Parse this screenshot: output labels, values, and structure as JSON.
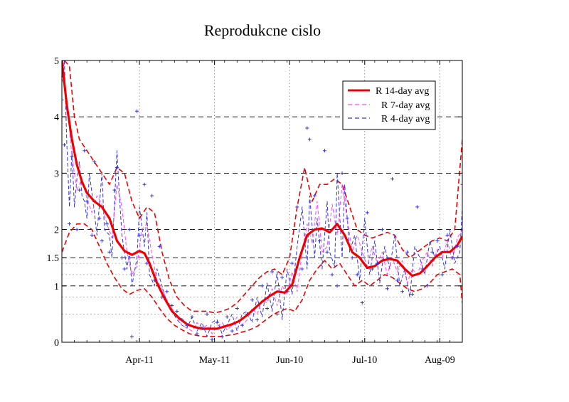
{
  "chart_data": {
    "type": "line",
    "title": "Reprodukcne cislo",
    "xlabel": "",
    "ylabel": "",
    "x_range": [
      "2020-03-11",
      "2020-08-18"
    ],
    "ylim": [
      0,
      5
    ],
    "y_ticks": [
      0,
      1,
      1.5,
      2,
      3,
      4,
      5
    ],
    "y_tick_labels": [
      "0",
      "1",
      "1.5",
      "2",
      "3",
      "4",
      "5"
    ],
    "y_gridlines": [
      0.5,
      0.8,
      1,
      1.2,
      1.4,
      1.5,
      2,
      3,
      4
    ],
    "x_ticks": [
      {
        "date": "2020-04-11",
        "label": "Apr-11"
      },
      {
        "date": "2020-05-11",
        "label": "May-11"
      },
      {
        "date": "2020-06-10",
        "label": "Jun-10"
      },
      {
        "date": "2020-07-10",
        "label": "Jul-10"
      },
      {
        "date": "2020-08-09",
        "label": "Aug-09"
      }
    ],
    "legend": {
      "position": "top-right",
      "entries": [
        {
          "label": "R 14-day avg",
          "color": "#ee0000",
          "style": "solid"
        },
        {
          "label": "R 7-day avg",
          "color": "#ff44ff",
          "style": "dashed"
        },
        {
          "label": "R 4-day avg",
          "color": "#3333ee",
          "style": "dashed"
        }
      ]
    },
    "series": [
      {
        "key": "r14",
        "color": "#ee0000",
        "x": [
          "2020-03-11",
          "2020-03-13",
          "2020-03-15",
          "2020-03-17",
          "2020-03-19",
          "2020-03-21",
          "2020-03-24",
          "2020-03-27",
          "2020-03-30",
          "2020-04-02",
          "2020-04-05",
          "2020-04-08",
          "2020-04-11",
          "2020-04-13",
          "2020-04-15",
          "2020-04-18",
          "2020-04-21",
          "2020-04-24",
          "2020-04-27",
          "2020-04-30",
          "2020-05-03",
          "2020-05-06",
          "2020-05-09",
          "2020-05-12",
          "2020-05-15",
          "2020-05-18",
          "2020-05-21",
          "2020-05-24",
          "2020-05-27",
          "2020-05-30",
          "2020-06-02",
          "2020-06-05",
          "2020-06-08",
          "2020-06-11",
          "2020-06-14",
          "2020-06-17",
          "2020-06-20",
          "2020-06-23",
          "2020-06-26",
          "2020-06-29",
          "2020-07-02",
          "2020-07-05",
          "2020-07-08",
          "2020-07-11",
          "2020-07-14",
          "2020-07-17",
          "2020-07-20",
          "2020-07-23",
          "2020-07-26",
          "2020-07-29",
          "2020-08-01",
          "2020-08-04",
          "2020-08-07",
          "2020-08-10",
          "2020-08-13",
          "2020-08-16",
          "2020-08-18"
        ],
        "y": [
          5.0,
          4.2,
          3.6,
          3.15,
          2.85,
          2.65,
          2.5,
          2.4,
          2.2,
          1.8,
          1.62,
          1.55,
          1.62,
          1.58,
          1.4,
          1.05,
          0.78,
          0.55,
          0.42,
          0.32,
          0.27,
          0.24,
          0.24,
          0.24,
          0.28,
          0.32,
          0.38,
          0.48,
          0.6,
          0.72,
          0.82,
          0.9,
          0.88,
          1.02,
          1.5,
          1.9,
          2.0,
          2.02,
          1.95,
          2.1,
          1.9,
          1.6,
          1.5,
          1.32,
          1.35,
          1.45,
          1.48,
          1.45,
          1.3,
          1.18,
          1.22,
          1.35,
          1.5,
          1.6,
          1.6,
          1.72,
          1.88
        ]
      },
      {
        "key": "r14_upper",
        "color": "#ee0000",
        "x": [
          "2020-03-12",
          "2020-03-14",
          "2020-03-16",
          "2020-03-18",
          "2020-03-21",
          "2020-03-24",
          "2020-03-27",
          "2020-03-30",
          "2020-04-02",
          "2020-04-05",
          "2020-04-08",
          "2020-04-11",
          "2020-04-14",
          "2020-04-17",
          "2020-04-20",
          "2020-04-23",
          "2020-04-26",
          "2020-04-29",
          "2020-05-02",
          "2020-05-05",
          "2020-05-08",
          "2020-05-11",
          "2020-05-14",
          "2020-05-17",
          "2020-05-20",
          "2020-05-23",
          "2020-05-26",
          "2020-05-29",
          "2020-06-01",
          "2020-06-04",
          "2020-06-07",
          "2020-06-10",
          "2020-06-13",
          "2020-06-16",
          "2020-06-19",
          "2020-06-22",
          "2020-06-25",
          "2020-06-28",
          "2020-07-01",
          "2020-07-04",
          "2020-07-07",
          "2020-07-10",
          "2020-07-13",
          "2020-07-16",
          "2020-07-19",
          "2020-07-22",
          "2020-07-25",
          "2020-07-28",
          "2020-07-31",
          "2020-08-03",
          "2020-08-06",
          "2020-08-09",
          "2020-08-12",
          "2020-08-15",
          "2020-08-18"
        ],
        "y": [
          5.0,
          4.9,
          4.0,
          3.6,
          3.4,
          3.2,
          3.0,
          2.8,
          3.1,
          3.0,
          2.5,
          2.2,
          2.4,
          2.3,
          1.6,
          1.1,
          0.8,
          0.65,
          0.55,
          0.55,
          0.55,
          0.52,
          0.55,
          0.6,
          0.7,
          0.85,
          1.0,
          1.15,
          1.25,
          1.3,
          1.2,
          1.5,
          2.4,
          3.1,
          2.5,
          2.8,
          2.8,
          2.9,
          2.8,
          2.4,
          2.0,
          1.9,
          1.85,
          1.9,
          1.95,
          1.9,
          1.65,
          1.5,
          1.6,
          1.7,
          1.8,
          1.85,
          1.8,
          2.0,
          3.6
        ]
      },
      {
        "key": "r14_lower",
        "color": "#ee0000",
        "x": [
          "2020-03-11",
          "2020-03-14",
          "2020-03-17",
          "2020-03-20",
          "2020-03-23",
          "2020-03-26",
          "2020-03-29",
          "2020-04-01",
          "2020-04-04",
          "2020-04-07",
          "2020-04-10",
          "2020-04-13",
          "2020-04-16",
          "2020-04-19",
          "2020-04-22",
          "2020-04-25",
          "2020-04-28",
          "2020-05-01",
          "2020-05-04",
          "2020-05-07",
          "2020-05-10",
          "2020-05-13",
          "2020-05-16",
          "2020-05-19",
          "2020-05-22",
          "2020-05-25",
          "2020-05-28",
          "2020-05-31",
          "2020-06-03",
          "2020-06-06",
          "2020-06-09",
          "2020-06-12",
          "2020-06-15",
          "2020-06-18",
          "2020-06-21",
          "2020-06-24",
          "2020-06-27",
          "2020-06-30",
          "2020-07-03",
          "2020-07-06",
          "2020-07-09",
          "2020-07-12",
          "2020-07-15",
          "2020-07-18",
          "2020-07-21",
          "2020-07-24",
          "2020-07-27",
          "2020-07-30",
          "2020-08-02",
          "2020-08-05",
          "2020-08-08",
          "2020-08-11",
          "2020-08-14",
          "2020-08-17",
          "2020-08-18"
        ],
        "y": [
          1.6,
          1.95,
          2.1,
          2.1,
          2.0,
          1.7,
          1.4,
          1.15,
          0.95,
          0.85,
          0.92,
          0.95,
          0.8,
          0.6,
          0.42,
          0.3,
          0.22,
          0.15,
          0.12,
          0.1,
          0.1,
          0.1,
          0.12,
          0.14,
          0.18,
          0.22,
          0.28,
          0.38,
          0.48,
          0.55,
          0.6,
          0.55,
          0.75,
          1.1,
          1.3,
          1.45,
          1.3,
          1.4,
          1.2,
          1.0,
          1.1,
          1.0,
          1.1,
          1.2,
          1.15,
          1.05,
          0.95,
          0.9,
          0.95,
          1.05,
          1.2,
          1.25,
          1.3,
          1.2,
          0.7
        ]
      },
      {
        "key": "r7",
        "color": "#ff44ff",
        "x": [
          "2020-03-11",
          "2020-03-13",
          "2020-03-15",
          "2020-03-17",
          "2020-03-19",
          "2020-03-21",
          "2020-03-23",
          "2020-03-25",
          "2020-03-27",
          "2020-03-29",
          "2020-03-31",
          "2020-04-02",
          "2020-04-04",
          "2020-04-06",
          "2020-04-08",
          "2020-04-10",
          "2020-04-12",
          "2020-04-14",
          "2020-04-16",
          "2020-04-18",
          "2020-04-20",
          "2020-04-22",
          "2020-04-24",
          "2020-04-26",
          "2020-04-28",
          "2020-04-30",
          "2020-05-02",
          "2020-05-04",
          "2020-05-06",
          "2020-05-08",
          "2020-05-10",
          "2020-05-12",
          "2020-05-14",
          "2020-05-16",
          "2020-05-18",
          "2020-05-20",
          "2020-05-22",
          "2020-05-24",
          "2020-05-26",
          "2020-05-28",
          "2020-05-30",
          "2020-06-01",
          "2020-06-03",
          "2020-06-05",
          "2020-06-07",
          "2020-06-09",
          "2020-06-11",
          "2020-06-13",
          "2020-06-15",
          "2020-06-17",
          "2020-06-19",
          "2020-06-21",
          "2020-06-23",
          "2020-06-25",
          "2020-06-27",
          "2020-06-29",
          "2020-07-01",
          "2020-07-03",
          "2020-07-05",
          "2020-07-07",
          "2020-07-09",
          "2020-07-11",
          "2020-07-13",
          "2020-07-15",
          "2020-07-17",
          "2020-07-19",
          "2020-07-21",
          "2020-07-23",
          "2020-07-25",
          "2020-07-27",
          "2020-07-29",
          "2020-07-31",
          "2020-08-02",
          "2020-08-04",
          "2020-08-06",
          "2020-08-08",
          "2020-08-10",
          "2020-08-12",
          "2020-08-14",
          "2020-08-16",
          "2020-08-18"
        ],
        "y": [
          5.0,
          4.3,
          3.3,
          2.7,
          2.9,
          2.55,
          2.3,
          2.6,
          2.45,
          2.1,
          1.85,
          2.8,
          2.4,
          1.6,
          1.2,
          1.35,
          2.0,
          2.1,
          1.55,
          1.1,
          0.95,
          0.75,
          0.6,
          0.45,
          0.3,
          0.25,
          0.2,
          0.35,
          0.25,
          0.3,
          0.15,
          0.28,
          0.35,
          0.22,
          0.3,
          0.45,
          0.3,
          0.4,
          0.6,
          0.5,
          0.75,
          0.7,
          0.95,
          0.65,
          1.0,
          0.85,
          1.25,
          0.9,
          1.6,
          2.1,
          1.75,
          2.5,
          1.6,
          1.7,
          2.45,
          1.9,
          2.8,
          2.2,
          1.6,
          1.9,
          1.6,
          1.35,
          1.7,
          1.4,
          1.6,
          1.2,
          1.5,
          1.25,
          1.45,
          1.05,
          1.3,
          1.2,
          1.45,
          1.6,
          1.35,
          1.65,
          1.5,
          1.8,
          1.45,
          1.85,
          2.0
        ]
      },
      {
        "key": "r4",
        "color": "#3333ee",
        "x": [
          "2020-03-11",
          "2020-03-12",
          "2020-03-13",
          "2020-03-14",
          "2020-03-15",
          "2020-03-16",
          "2020-03-17",
          "2020-03-18",
          "2020-03-19",
          "2020-03-20",
          "2020-03-21",
          "2020-03-22",
          "2020-03-24",
          "2020-03-25",
          "2020-03-27",
          "2020-03-28",
          "2020-03-30",
          "2020-03-31",
          "2020-04-02",
          "2020-04-03",
          "2020-04-04",
          "2020-04-06",
          "2020-04-07",
          "2020-04-08",
          "2020-04-10",
          "2020-04-11",
          "2020-04-13",
          "2020-04-14",
          "2020-04-15",
          "2020-04-17",
          "2020-04-18",
          "2020-04-20",
          "2020-04-22",
          "2020-04-24",
          "2020-04-26",
          "2020-04-28",
          "2020-04-30",
          "2020-05-02",
          "2020-05-04",
          "2020-05-06",
          "2020-05-08",
          "2020-05-10",
          "2020-05-12",
          "2020-05-14",
          "2020-05-16",
          "2020-05-18",
          "2020-05-20",
          "2020-05-22",
          "2020-05-24",
          "2020-05-26",
          "2020-05-28",
          "2020-05-30",
          "2020-06-01",
          "2020-06-03",
          "2020-06-05",
          "2020-06-07",
          "2020-06-09",
          "2020-06-11",
          "2020-06-13",
          "2020-06-15",
          "2020-06-17",
          "2020-06-18",
          "2020-06-20",
          "2020-06-21",
          "2020-06-23",
          "2020-06-25",
          "2020-06-26",
          "2020-06-28",
          "2020-06-29",
          "2020-07-01",
          "2020-07-02",
          "2020-07-04",
          "2020-07-06",
          "2020-07-08",
          "2020-07-10",
          "2020-07-12",
          "2020-07-14",
          "2020-07-16",
          "2020-07-18",
          "2020-07-20",
          "2020-07-22",
          "2020-07-24",
          "2020-07-26",
          "2020-07-28",
          "2020-07-30",
          "2020-08-01",
          "2020-08-03",
          "2020-08-05",
          "2020-08-07",
          "2020-08-09",
          "2020-08-11",
          "2020-08-13",
          "2020-08-15",
          "2020-08-17",
          "2020-08-18"
        ],
        "y": [
          4.6,
          5.0,
          3.5,
          2.4,
          3.4,
          2.4,
          2.9,
          3.2,
          2.6,
          2.5,
          2.2,
          3.0,
          2.3,
          1.9,
          3.0,
          2.0,
          1.9,
          1.5,
          3.4,
          2.6,
          1.9,
          1.3,
          1.6,
          1.0,
          1.5,
          2.4,
          1.7,
          2.3,
          1.2,
          1.0,
          1.3,
          1.0,
          0.7,
          0.55,
          0.4,
          0.3,
          0.25,
          0.45,
          0.2,
          0.35,
          0.1,
          0.35,
          0.4,
          0.15,
          0.3,
          0.5,
          0.2,
          0.5,
          0.55,
          0.35,
          0.8,
          0.45,
          1.05,
          0.55,
          1.25,
          0.4,
          1.3,
          0.85,
          1.7,
          2.4,
          1.3,
          2.6,
          1.5,
          2.2,
          1.3,
          2.5,
          1.6,
          1.35,
          3.0,
          1.5,
          2.8,
          1.6,
          1.9,
          1.1,
          2.2,
          1.2,
          1.8,
          1.05,
          1.7,
          1.3,
          1.9,
          1.0,
          1.3,
          0.8,
          1.7,
          1.5,
          1.2,
          1.8,
          1.5,
          1.7,
          1.3,
          2.0,
          1.4,
          1.6,
          2.4
        ]
      },
      {
        "key": "daily",
        "color": "#3333ee",
        "marker": "plus",
        "x": [
          "2020-03-11",
          "2020-03-12",
          "2020-03-14",
          "2020-03-15",
          "2020-03-17",
          "2020-03-18",
          "2020-03-20",
          "2020-03-21",
          "2020-03-23",
          "2020-03-24",
          "2020-03-26",
          "2020-03-27",
          "2020-03-29",
          "2020-03-30",
          "2020-04-01",
          "2020-04-02",
          "2020-04-04",
          "2020-04-05",
          "2020-04-07",
          "2020-04-08",
          "2020-04-10",
          "2020-04-11",
          "2020-04-13",
          "2020-04-14",
          "2020-04-16",
          "2020-04-17",
          "2020-04-19",
          "2020-04-20",
          "2020-04-22",
          "2020-04-24",
          "2020-04-26",
          "2020-04-28",
          "2020-04-30",
          "2020-05-02",
          "2020-05-04",
          "2020-05-06",
          "2020-05-08",
          "2020-05-10",
          "2020-05-12",
          "2020-05-14",
          "2020-05-16",
          "2020-05-18",
          "2020-05-20",
          "2020-05-22",
          "2020-05-24",
          "2020-05-26",
          "2020-05-28",
          "2020-05-30",
          "2020-06-01",
          "2020-06-03",
          "2020-06-05",
          "2020-06-07",
          "2020-06-09",
          "2020-06-11",
          "2020-06-13",
          "2020-06-15",
          "2020-06-17",
          "2020-06-18",
          "2020-06-20",
          "2020-06-22",
          "2020-06-24",
          "2020-06-25",
          "2020-06-27",
          "2020-06-29",
          "2020-07-01",
          "2020-07-03",
          "2020-07-05",
          "2020-07-07",
          "2020-07-09",
          "2020-07-11",
          "2020-07-13",
          "2020-07-15",
          "2020-07-17",
          "2020-07-19",
          "2020-07-21",
          "2020-07-23",
          "2020-07-25",
          "2020-07-27",
          "2020-07-29",
          "2020-07-31",
          "2020-08-02",
          "2020-08-04",
          "2020-08-06",
          "2020-08-08",
          "2020-08-10",
          "2020-08-12",
          "2020-08-14",
          "2020-08-16",
          "2020-08-18"
        ],
        "y": [
          4.3,
          3.5,
          2.1,
          3.3,
          2.0,
          2.7,
          3.4,
          2.5,
          1.9,
          3.2,
          2.2,
          1.8,
          2.1,
          1.6,
          2.7,
          3.1,
          1.5,
          1.3,
          2.0,
          0.1,
          4.1,
          1.9,
          2.8,
          1.4,
          2.6,
          1.1,
          1.7,
          0.8,
          0.9,
          0.65,
          0.55,
          0.4,
          0.3,
          0.45,
          0.15,
          0.25,
          0.5,
          0.05,
          0.35,
          0.1,
          0.45,
          0.2,
          0.6,
          0.3,
          0.5,
          0.75,
          0.4,
          1.0,
          0.6,
          1.25,
          0.5,
          1.15,
          0.9,
          1.4,
          2.4,
          1.3,
          3.8,
          3.6,
          2.6,
          1.8,
          3.4,
          1.6,
          1.2,
          1.0,
          3.0,
          2.2,
          1.5,
          1.2,
          0.7,
          2.3,
          1.3,
          1.4,
          2.0,
          0.95,
          2.9,
          1.1,
          0.9,
          1.6,
          0.85,
          2.4,
          1.3,
          1.0,
          1.6,
          1.8,
          1.2,
          1.9,
          1.5,
          1.7,
          2.8
        ]
      }
    ]
  }
}
